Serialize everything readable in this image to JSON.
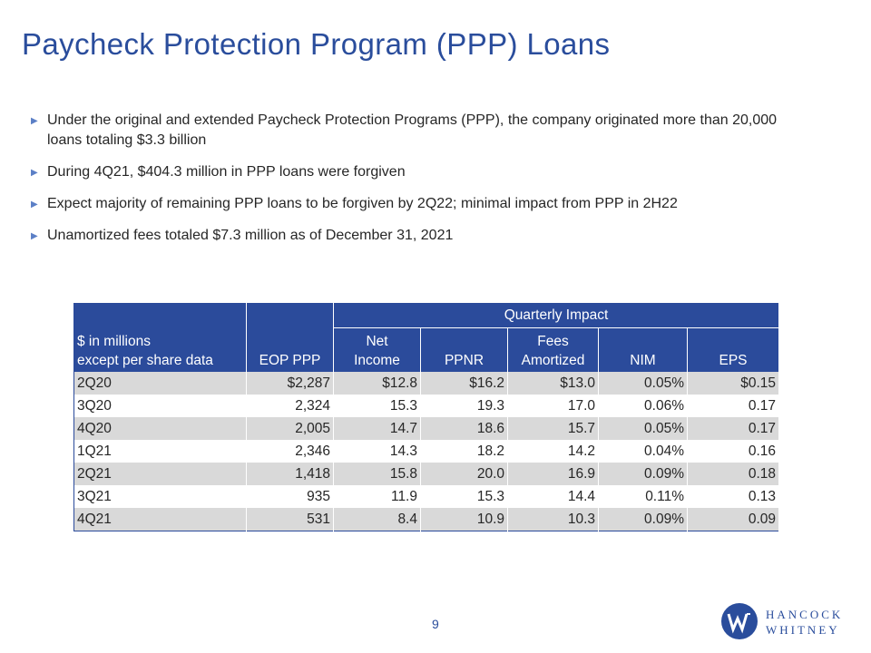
{
  "title": "Paycheck Protection Program (PPP) Loans",
  "bullets": [
    "Under the original and extended Paycheck Protection Programs (PPP), the company originated more than 20,000 loans totaling $3.3 billion",
    "During 4Q21, $404.3 million in PPP loans were forgiven",
    "Expect majority of remaining PPP loans to be forgiven by 2Q22; minimal impact from PPP in 2H22",
    "Unamortized fees totaled $7.3 million as of December 31, 2021"
  ],
  "table": {
    "group_header": "Quarterly Impact",
    "stub_header_line1": "$ in millions",
    "stub_header_line2": "except per share data",
    "columns": {
      "eop": "EOP PPP",
      "net_income_1": "Net",
      "net_income_2": "Income",
      "ppnr": "PPNR",
      "fees_1": "Fees",
      "fees_2": "Amortized",
      "nim": "NIM",
      "eps": "EPS"
    },
    "rows": [
      {
        "period": "2Q20",
        "eop": "$2,287",
        "net_income": "$12.8",
        "ppnr": "$16.2",
        "fees": "$13.0",
        "nim": "0.05%",
        "eps": "$0.15"
      },
      {
        "period": "3Q20",
        "eop": "2,324",
        "net_income": "15.3",
        "ppnr": "19.3",
        "fees": "17.0",
        "nim": "0.06%",
        "eps": "0.17"
      },
      {
        "period": "4Q20",
        "eop": "2,005",
        "net_income": "14.7",
        "ppnr": "18.6",
        "fees": "15.7",
        "nim": "0.05%",
        "eps": "0.17"
      },
      {
        "period": "1Q21",
        "eop": "2,346",
        "net_income": "14.3",
        "ppnr": "18.2",
        "fees": "14.2",
        "nim": "0.04%",
        "eps": "0.16"
      },
      {
        "period": "2Q21",
        "eop": "1,418",
        "net_income": "15.8",
        "ppnr": "20.0",
        "fees": "16.9",
        "nim": "0.09%",
        "eps": "0.18"
      },
      {
        "period": "3Q21",
        "eop": "935",
        "net_income": "11.9",
        "ppnr": "15.3",
        "fees": "14.4",
        "nim": "0.11%",
        "eps": "0.13"
      },
      {
        "period": "4Q21",
        "eop": "531",
        "net_income": "8.4",
        "ppnr": "10.9",
        "fees": "10.3",
        "nim": "0.09%",
        "eps": "0.09"
      }
    ]
  },
  "page_number": "9",
  "logo": {
    "line1": "HANCOCK",
    "line2": "WHITNEY",
    "icon": "hancock-whitney-logo-icon"
  },
  "colors": {
    "brand_blue": "#2a4d9c",
    "header_fill": "#2b4b9b",
    "band_gray": "#d9d9d9",
    "bullet": "#5b7fc6"
  }
}
